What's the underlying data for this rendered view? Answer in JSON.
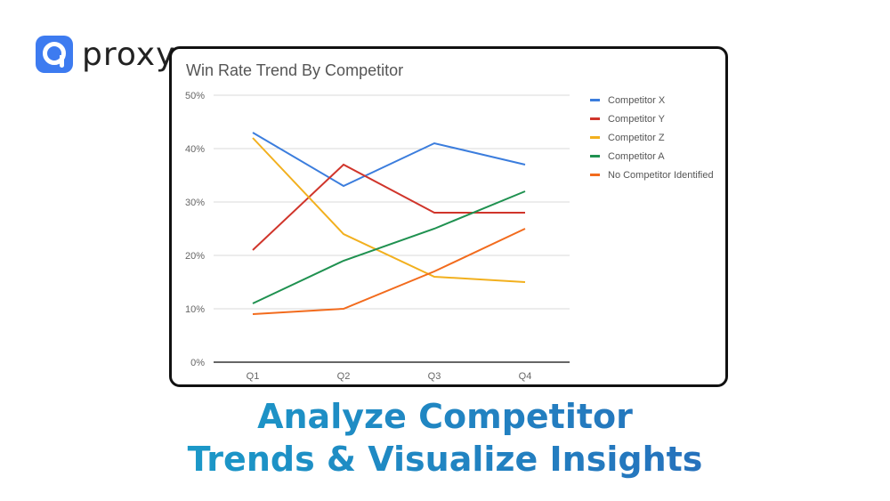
{
  "brand": {
    "name": "proxy",
    "icon": "proxy-logo-icon",
    "color": "#3d7bf0"
  },
  "headline": {
    "line1": "Analyze Competitor",
    "line2": "Trends & Visualize Insights"
  },
  "chart_data": {
    "type": "line",
    "title": "Win Rate Trend By Competitor",
    "xlabel": "",
    "ylabel": "",
    "categories": [
      "Q1",
      "Q2",
      "Q3",
      "Q4"
    ],
    "y_ticks": [
      "0%",
      "10%",
      "20%",
      "30%",
      "40%",
      "50%"
    ],
    "ylim": [
      0,
      50
    ],
    "grid": true,
    "legend_position": "right",
    "series": [
      {
        "name": "Competitor X",
        "color": "#3b7ddd",
        "values": [
          43,
          33,
          41,
          37
        ]
      },
      {
        "name": "Competitor Y",
        "color": "#d0352b",
        "values": [
          21,
          37,
          28,
          28
        ]
      },
      {
        "name": "Competitor Z",
        "color": "#f2b01e",
        "values": [
          42,
          24,
          16,
          15
        ]
      },
      {
        "name": "Competitor A",
        "color": "#1f9150",
        "values": [
          11,
          19,
          25,
          32
        ]
      },
      {
        "name": "No Competitor Identified",
        "color": "#f26b1d",
        "values": [
          9,
          10,
          17,
          25
        ]
      }
    ]
  }
}
